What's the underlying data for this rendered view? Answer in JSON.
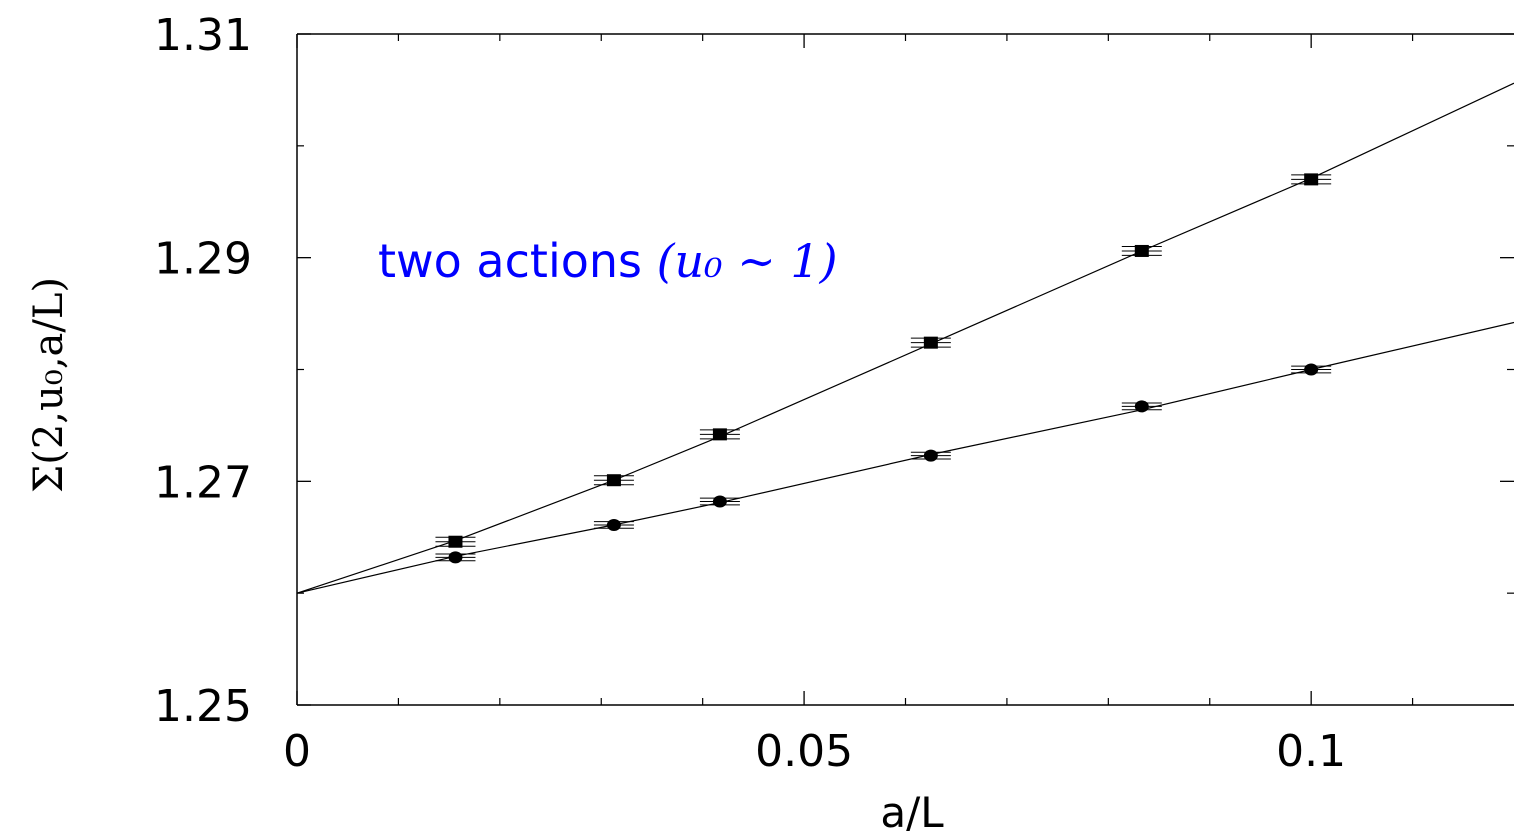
{
  "chart_data": {
    "type": "line",
    "xlabel": "a/L",
    "ylabel": "Σ(2,u₀,a/L)",
    "xlim": [
      0,
      0.12
    ],
    "ylim": [
      1.25,
      1.31
    ],
    "xticks_major": [
      0,
      0.05,
      0.1
    ],
    "xticks_major_labels": [
      "0",
      "0.05",
      "0.1"
    ],
    "xticks_minor": [
      0.01,
      0.02,
      0.03,
      0.04,
      0.06,
      0.07,
      0.08,
      0.09,
      0.11
    ],
    "yticks_major": [
      1.25,
      1.27,
      1.29,
      1.31
    ],
    "yticks_major_labels": [
      "1.25",
      "1.27",
      "1.29",
      "1.31"
    ],
    "yticks_minor": [
      1.26,
      1.28,
      1.3
    ],
    "grid": false,
    "legend": "none",
    "annotation": {
      "text_prefix": "two actions ",
      "math": "(u₀ ∼ 1)",
      "color": "#0000ff"
    },
    "series": [
      {
        "marker": "square",
        "x": [
          0.015625,
          0.03125,
          0.0417,
          0.0625,
          0.0833,
          0.1
        ],
        "y": [
          1.2646,
          1.2701,
          1.2742,
          1.2824,
          1.2906,
          1.297
        ],
        "yerr": [
          0.0004,
          0.0004,
          0.0004,
          0.0004,
          0.0004,
          0.0004
        ],
        "fit": {
          "x": [
            0,
            0.015625,
            0.03125,
            0.0417,
            0.0625,
            0.0833,
            0.1,
            0.12
          ],
          "y": [
            1.26,
            1.2647,
            1.2701,
            1.274,
            1.2823,
            1.2906,
            1.2971,
            1.3056
          ]
        }
      },
      {
        "marker": "circle",
        "x": [
          0.015625,
          0.03125,
          0.0417,
          0.0625,
          0.0833,
          0.1
        ],
        "y": [
          1.2632,
          1.2661,
          1.2682,
          1.2723,
          1.2767,
          1.28
        ],
        "yerr": [
          0.0003,
          0.0003,
          0.0003,
          0.0003,
          0.0003,
          0.0003
        ],
        "fit": {
          "x": [
            0,
            0.015625,
            0.03125,
            0.0417,
            0.0625,
            0.0833,
            0.1,
            0.12
          ],
          "y": [
            1.26,
            1.2633,
            1.2661,
            1.2681,
            1.2724,
            1.2764,
            1.28,
            1.2842
          ]
        }
      }
    ]
  }
}
